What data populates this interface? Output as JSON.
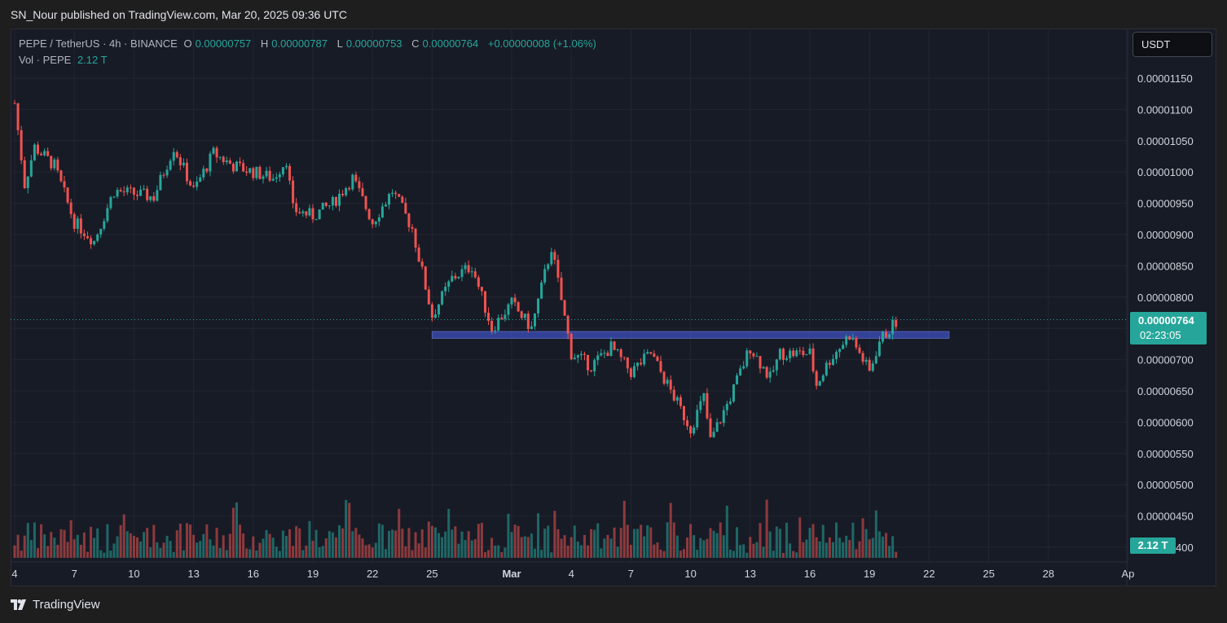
{
  "header": {
    "publisher": "SN_Nour published on TradingView.com, Mar 20, 2025 09:36 UTC"
  },
  "legend": {
    "symbol": "PEPE / TetherUS · 4h · BINANCE",
    "o_label": "O",
    "o_value": "0.00000757",
    "h_label": "H",
    "h_value": "0.00000787",
    "l_label": "L",
    "l_value": "0.00000753",
    "c_label": "C",
    "c_value": "0.00000764",
    "change": "+0.00000008 (+1.06%)",
    "vol_label": "Vol · PEPE",
    "vol_value": "2.12 T"
  },
  "currency_button": "USDT",
  "last_price": {
    "price": "0.00000764",
    "countdown": "02:23:05"
  },
  "volume_tag": "2.12 T",
  "footer": {
    "brand": "TradingView"
  },
  "colors": {
    "up": "#26a69a",
    "down": "#ef5350",
    "zone": "#3949ab",
    "background": "#171b26"
  },
  "chart_data": {
    "type": "candlestick",
    "interval": "4h",
    "y_axis_ticks": [
      "0.00001150",
      "0.00001100",
      "0.00001050",
      "0.00001000",
      "0.00000950",
      "0.00000900",
      "0.00000850",
      "0.00000800",
      "0.00000750",
      "0.00000700",
      "0.00000650",
      "0.00000600",
      "0.00000550",
      "0.00000500",
      "0.00000450",
      "0.00000400"
    ],
    "ylim": [
      3.8e-06,
      1.17e-05
    ],
    "x_axis_ticks": [
      "4",
      "7",
      "10",
      "13",
      "16",
      "19",
      "22",
      "25",
      "Mar",
      "4",
      "7",
      "10",
      "13",
      "16",
      "19",
      "22",
      "25",
      "28",
      "Ap"
    ],
    "x_dates": [
      "2025-02-04",
      "2025-02-07",
      "2025-02-10",
      "2025-02-13",
      "2025-02-16",
      "2025-02-19",
      "2025-02-22",
      "2025-02-25",
      "2025-03-01",
      "2025-03-04",
      "2025-03-07",
      "2025-03-10",
      "2025-03-13",
      "2025-03-16",
      "2025-03-19",
      "2025-03-22",
      "2025-03-25",
      "2025-03-28",
      "2025-04-01"
    ],
    "grid": true,
    "last_close": 7.64e-06,
    "support_zone": {
      "from_date": "2025-02-25",
      "to_date": "2025-03-23",
      "low": 7.34e-06,
      "high": 7.45e-06
    },
    "price_path": [
      [
        "2025-02-04",
        1.11e-05
      ],
      [
        "2025-02-04T12",
        9.8e-06
      ],
      [
        "2025-02-05",
        1.04e-05
      ],
      [
        "2025-02-06",
        1.01e-05
      ],
      [
        "2025-02-07",
        9.2e-06
      ],
      [
        "2025-02-08",
        8.9e-06
      ],
      [
        "2025-02-09",
        9.7e-06
      ],
      [
        "2025-02-11",
        9.6e-06
      ],
      [
        "2025-02-12",
        1.04e-05
      ],
      [
        "2025-02-13",
        9.7e-06
      ],
      [
        "2025-02-14",
        1.03e-05
      ],
      [
        "2025-02-15",
        1.01e-05
      ],
      [
        "2025-02-17",
        9.9e-06
      ],
      [
        "2025-02-17T16",
        1.02e-05
      ],
      [
        "2025-02-18",
        9.4e-06
      ],
      [
        "2025-02-19",
        9.3e-06
      ],
      [
        "2025-02-20",
        9.5e-06
      ],
      [
        "2025-02-21",
        9.9e-06
      ],
      [
        "2025-02-22",
        9.2e-06
      ],
      [
        "2025-02-23",
        9.7e-06
      ],
      [
        "2025-02-24",
        9.1e-06
      ],
      [
        "2025-02-25",
        7.7e-06
      ],
      [
        "2025-02-26",
        8.3e-06
      ],
      [
        "2025-02-27",
        8.5e-06
      ],
      [
        "2025-02-28",
        7.5e-06
      ],
      [
        "2025-03-01",
        7.9e-06
      ],
      [
        "2025-03-02",
        7.5e-06
      ],
      [
        "2025-03-03",
        8.8e-06
      ],
      [
        "2025-03-04",
        7.1e-06
      ],
      [
        "2025-03-05",
        6.9e-06
      ],
      [
        "2025-03-06",
        7.2e-06
      ],
      [
        "2025-03-07",
        6.8e-06
      ],
      [
        "2025-03-08",
        7.1e-06
      ],
      [
        "2025-03-09",
        6.5e-06
      ],
      [
        "2025-03-10",
        5.9e-06
      ],
      [
        "2025-03-10T16",
        6.4e-06
      ],
      [
        "2025-03-11",
        5.7e-06
      ],
      [
        "2025-03-12",
        6.4e-06
      ],
      [
        "2025-03-13",
        7.2e-06
      ],
      [
        "2025-03-14",
        6.7e-06
      ],
      [
        "2025-03-14T12",
        7.1e-06
      ],
      [
        "2025-03-16",
        7.1e-06
      ],
      [
        "2025-03-16T08",
        6.6e-06
      ],
      [
        "2025-03-17",
        7e-06
      ],
      [
        "2025-03-18",
        7.4e-06
      ],
      [
        "2025-03-19",
        6.8e-06
      ],
      [
        "2025-03-19T12",
        7.3e-06
      ],
      [
        "2025-03-20T08",
        7.6e-06
      ]
    ]
  }
}
